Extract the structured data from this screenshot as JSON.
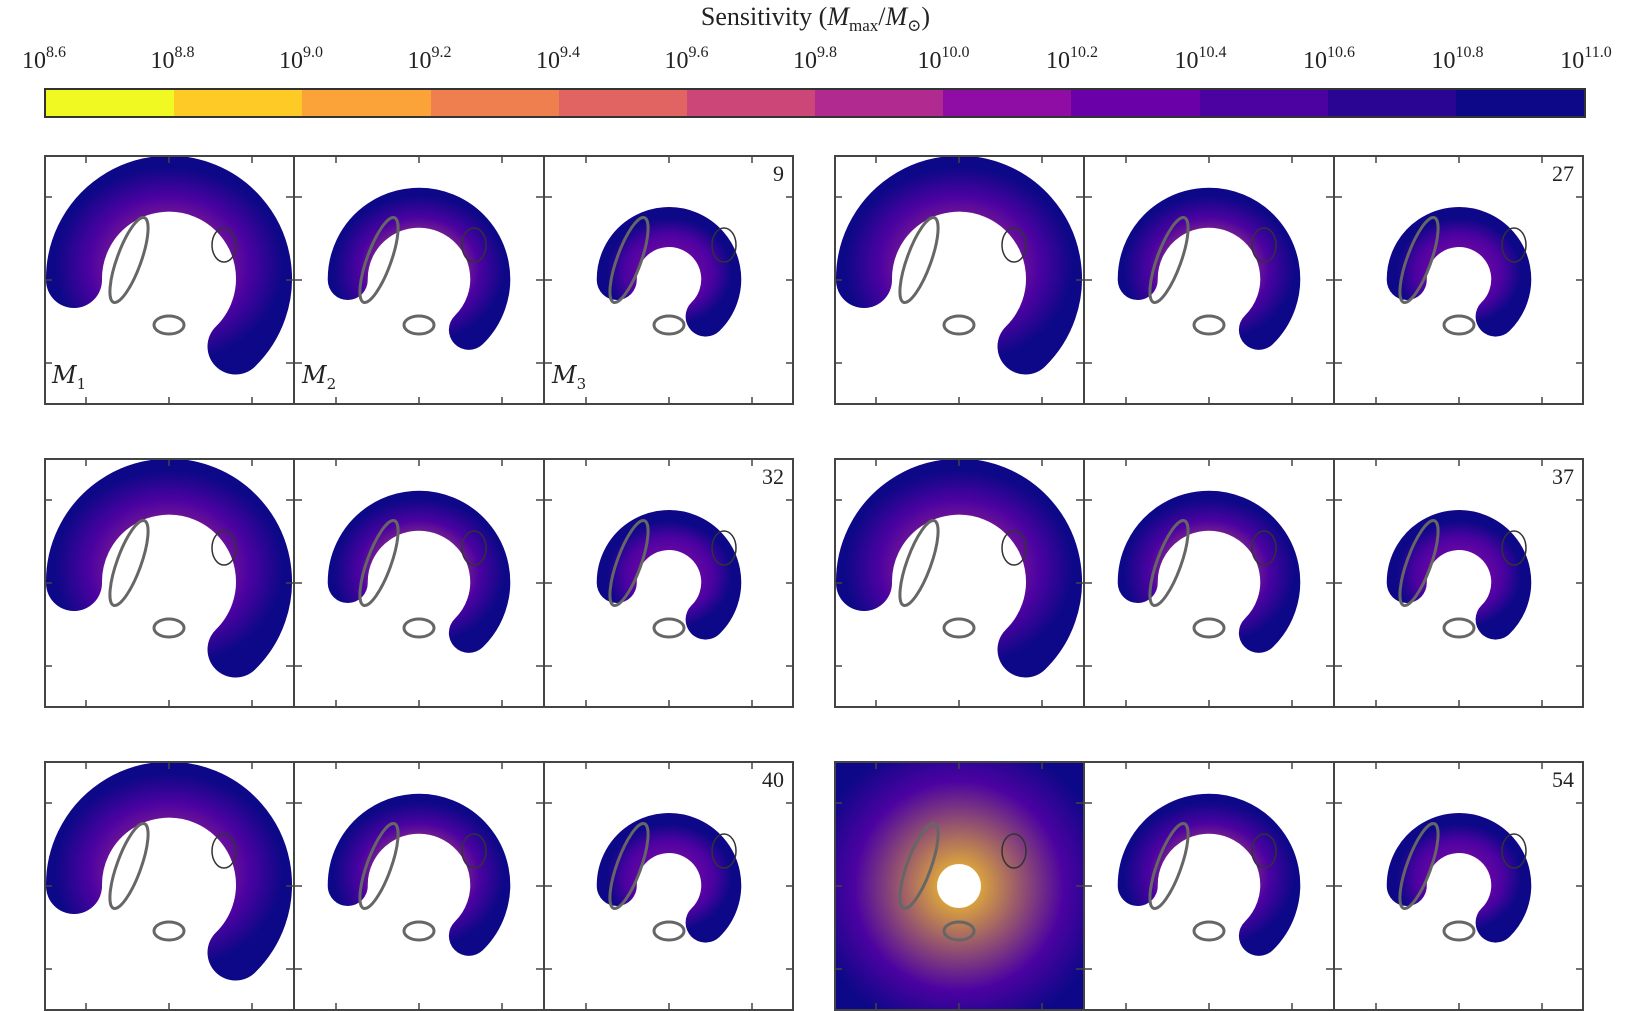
{
  "colorbar": {
    "title": "Sensitivity (M_max/M_⊙)",
    "title_parts": {
      "pre": "Sensitivity (",
      "m": "M",
      "sub1": "max",
      "slash": "/",
      "m2": "M",
      "sub2": "⊙",
      "post": ")"
    },
    "ticks": [
      {
        "base": "10",
        "exp": "8.6"
      },
      {
        "base": "10",
        "exp": "8.8"
      },
      {
        "base": "10",
        "exp": "9.0"
      },
      {
        "base": "10",
        "exp": "9.2"
      },
      {
        "base": "10",
        "exp": "9.4"
      },
      {
        "base": "10",
        "exp": "9.6"
      },
      {
        "base": "10",
        "exp": "9.8"
      },
      {
        "base": "10",
        "exp": "10.0"
      },
      {
        "base": "10",
        "exp": "10.2"
      },
      {
        "base": "10",
        "exp": "10.4"
      },
      {
        "base": "10",
        "exp": "10.6"
      },
      {
        "base": "10",
        "exp": "10.8"
      },
      {
        "base": "10",
        "exp": "11.0"
      }
    ],
    "colors": [
      "#f0f921",
      "#fdca26",
      "#fba238",
      "#f07f4f",
      "#e16462",
      "#cc4778",
      "#b12a90",
      "#8f0da4",
      "#6a00a8",
      "#4c02a1",
      "#2a0593",
      "#0d0887"
    ]
  },
  "chart_data": {
    "type": "heatmap",
    "colorbar_range_log10": [
      8.6,
      11.0
    ],
    "colorbar_scale": "log",
    "models": [
      "M1",
      "M2",
      "M3"
    ],
    "model_labels": [
      {
        "script": "M",
        "sub": "1"
      },
      {
        "script": "M",
        "sub": "2"
      },
      {
        "script": "M",
        "sub": "3"
      }
    ],
    "lens_systems": [
      {
        "id": "9"
      },
      {
        "id": "27"
      },
      {
        "id": "32"
      },
      {
        "id": "37"
      },
      {
        "id": "40"
      },
      {
        "id": "54"
      }
    ]
  }
}
